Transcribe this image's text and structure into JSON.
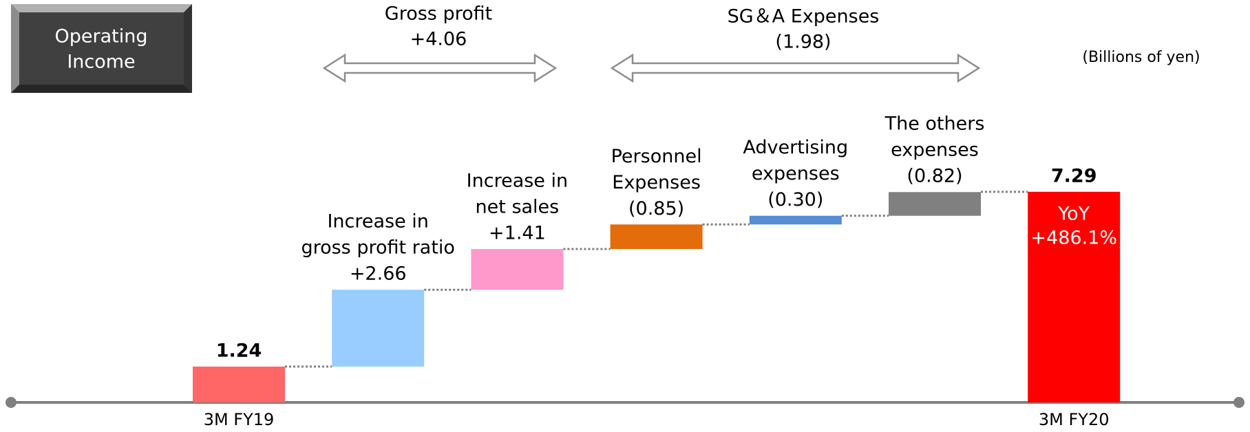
{
  "chart_data": {
    "type": "waterfall",
    "title": [
      "Operating",
      "Income"
    ],
    "unit_note": "(Billions of yen)",
    "categories": [
      "3M FY19",
      null,
      null,
      null,
      null,
      null,
      "3M FY20"
    ],
    "bar_labels": [
      null,
      [
        "Increase in",
        "gross profit ratio"
      ],
      [
        "Increase in",
        "net sales"
      ],
      [
        "Personnel",
        "Expenses"
      ],
      [
        "Advertising",
        "expenses"
      ],
      [
        "The others",
        "expenses"
      ],
      null
    ],
    "measure": [
      "absolute",
      "relative",
      "relative",
      "relative",
      "relative",
      "relative",
      "total"
    ],
    "values": [
      1.24,
      2.66,
      1.41,
      0.85,
      0.3,
      0.82,
      7.29
    ],
    "value_labels": [
      "1.24",
      "+2.66",
      "+1.41",
      "(0.85)",
      "(0.30)",
      "(0.82)",
      "7.29"
    ],
    "colors": [
      "#ff6666",
      "#99ccff",
      "#ff99cc",
      "#e46c0a",
      "#558ed5",
      "#808080",
      "#ff0000"
    ],
    "brackets": [
      {
        "title": "Gross profit",
        "label": "+4.06"
      },
      {
        "title": "SG＆A Expenses",
        "label": "(1.98)"
      }
    ],
    "yoy": {
      "title": "YoY",
      "label": "+486.1%"
    }
  }
}
